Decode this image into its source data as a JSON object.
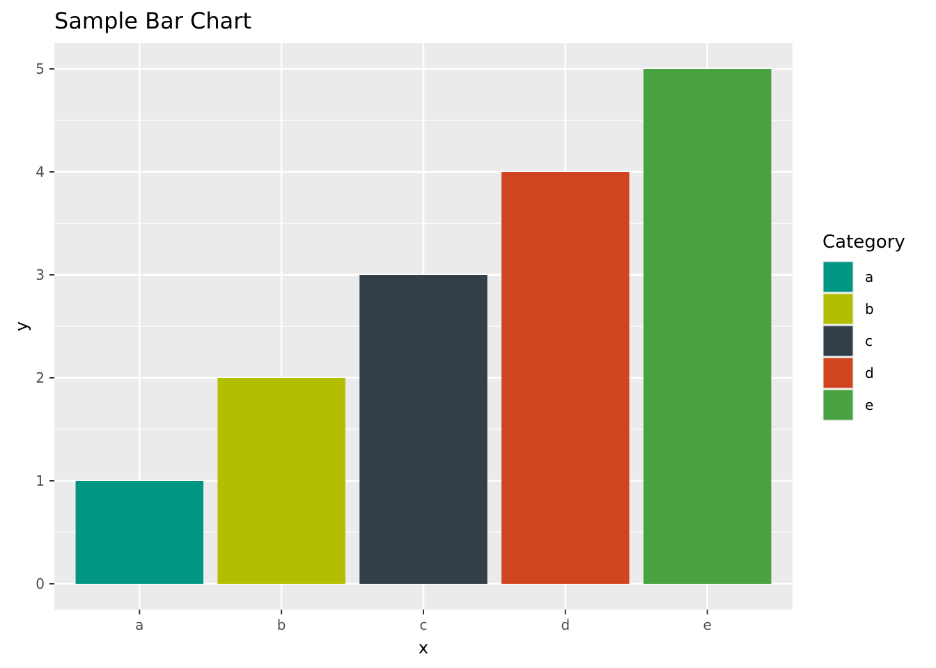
{
  "chart_data": {
    "type": "bar",
    "title": "Sample Bar Chart",
    "xlabel": "x",
    "ylabel": "y",
    "categories": [
      "a",
      "b",
      "c",
      "d",
      "e"
    ],
    "values": [
      1,
      2,
      3,
      4,
      5
    ],
    "colors": [
      "#009681",
      "#B4BE00",
      "#333F48",
      "#CF4520",
      "#48A23F"
    ],
    "ylim": [
      -0.25,
      5.25
    ],
    "yticks": [
      0,
      1,
      2,
      3,
      4,
      5
    ],
    "grid": true,
    "legend": {
      "title": "Category",
      "position": "right",
      "entries": [
        "a",
        "b",
        "c",
        "d",
        "e"
      ]
    },
    "background": "#EBEBEB",
    "gridline_color": "#FFFFFF"
  }
}
